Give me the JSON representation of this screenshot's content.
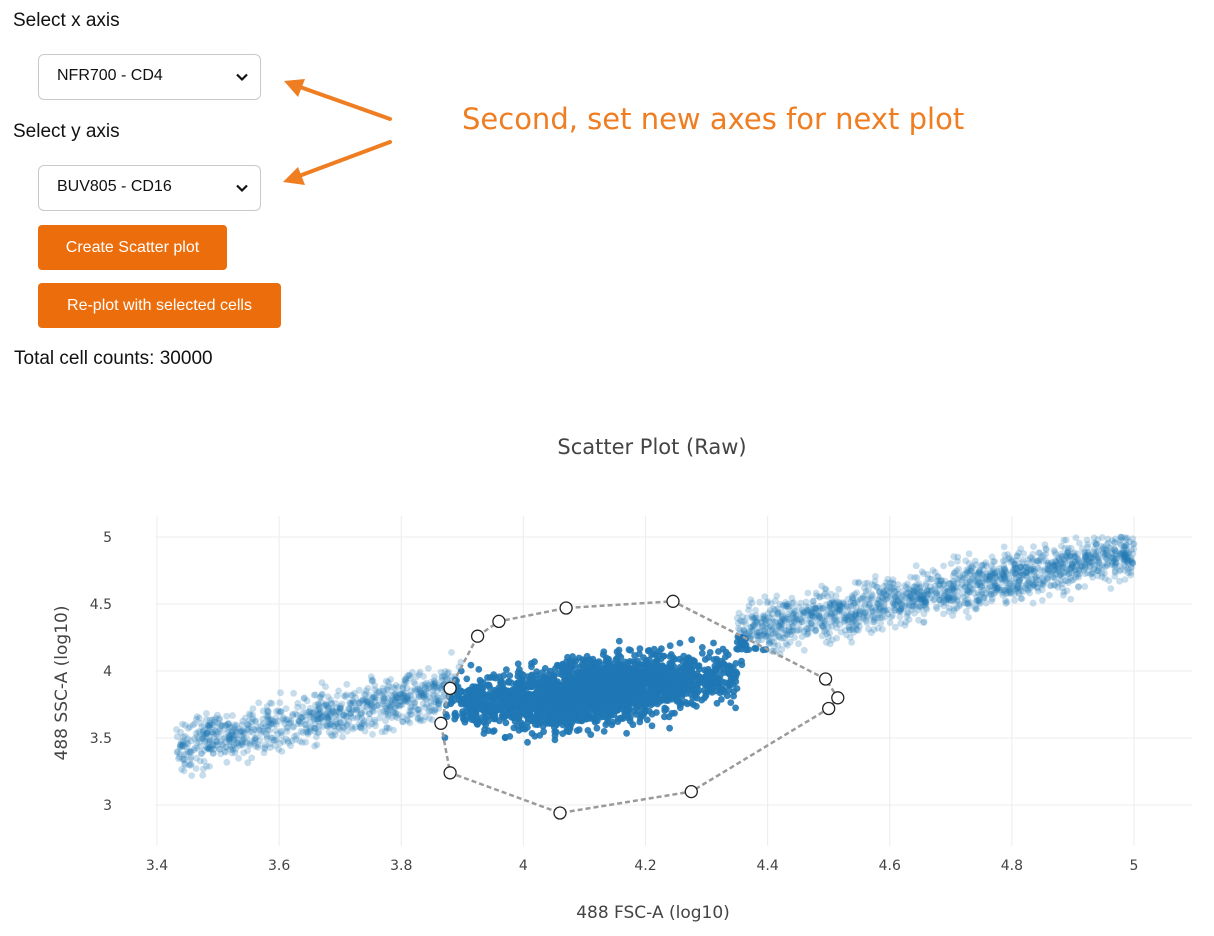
{
  "controls": {
    "x_label": "Select x axis",
    "x_value": "NFR700 - CD4",
    "y_label": "Select y axis",
    "y_value": "BUV805 - CD16",
    "create_button": "Create Scatter plot",
    "replot_button": "Re-plot with selected cells",
    "total_counts": "Total cell counts: 30000"
  },
  "annotation": {
    "text": "Second, set new axes for next plot",
    "color": "#ef7d22"
  },
  "colors": {
    "button": "#ec6d0b",
    "points": "#1f77b4"
  },
  "chart_data": {
    "type": "scatter",
    "title": "Scatter Plot (Raw)",
    "xlabel": "488 FSC-A (log10)",
    "ylabel": "488 SSC-A (log10)",
    "xlim": [
      3.35,
      5.1
    ],
    "ylim": [
      2.75,
      5.15
    ],
    "xticks": [
      3.4,
      3.6,
      3.8,
      4,
      4.2,
      4.4,
      4.6,
      4.8,
      5
    ],
    "yticks": [
      3,
      3.5,
      4,
      4.5,
      5
    ],
    "grid": true,
    "n_points": 30000,
    "gate_polygon": [
      [
        3.925,
        4.26
      ],
      [
        3.96,
        4.37
      ],
      [
        4.07,
        4.47
      ],
      [
        4.245,
        4.52
      ],
      [
        4.495,
        3.94
      ],
      [
        4.515,
        3.8
      ],
      [
        4.5,
        3.72
      ],
      [
        4.275,
        3.1
      ],
      [
        4.06,
        2.94
      ],
      [
        3.88,
        3.24
      ],
      [
        3.865,
        3.61
      ],
      [
        3.88,
        3.87
      ]
    ]
  }
}
